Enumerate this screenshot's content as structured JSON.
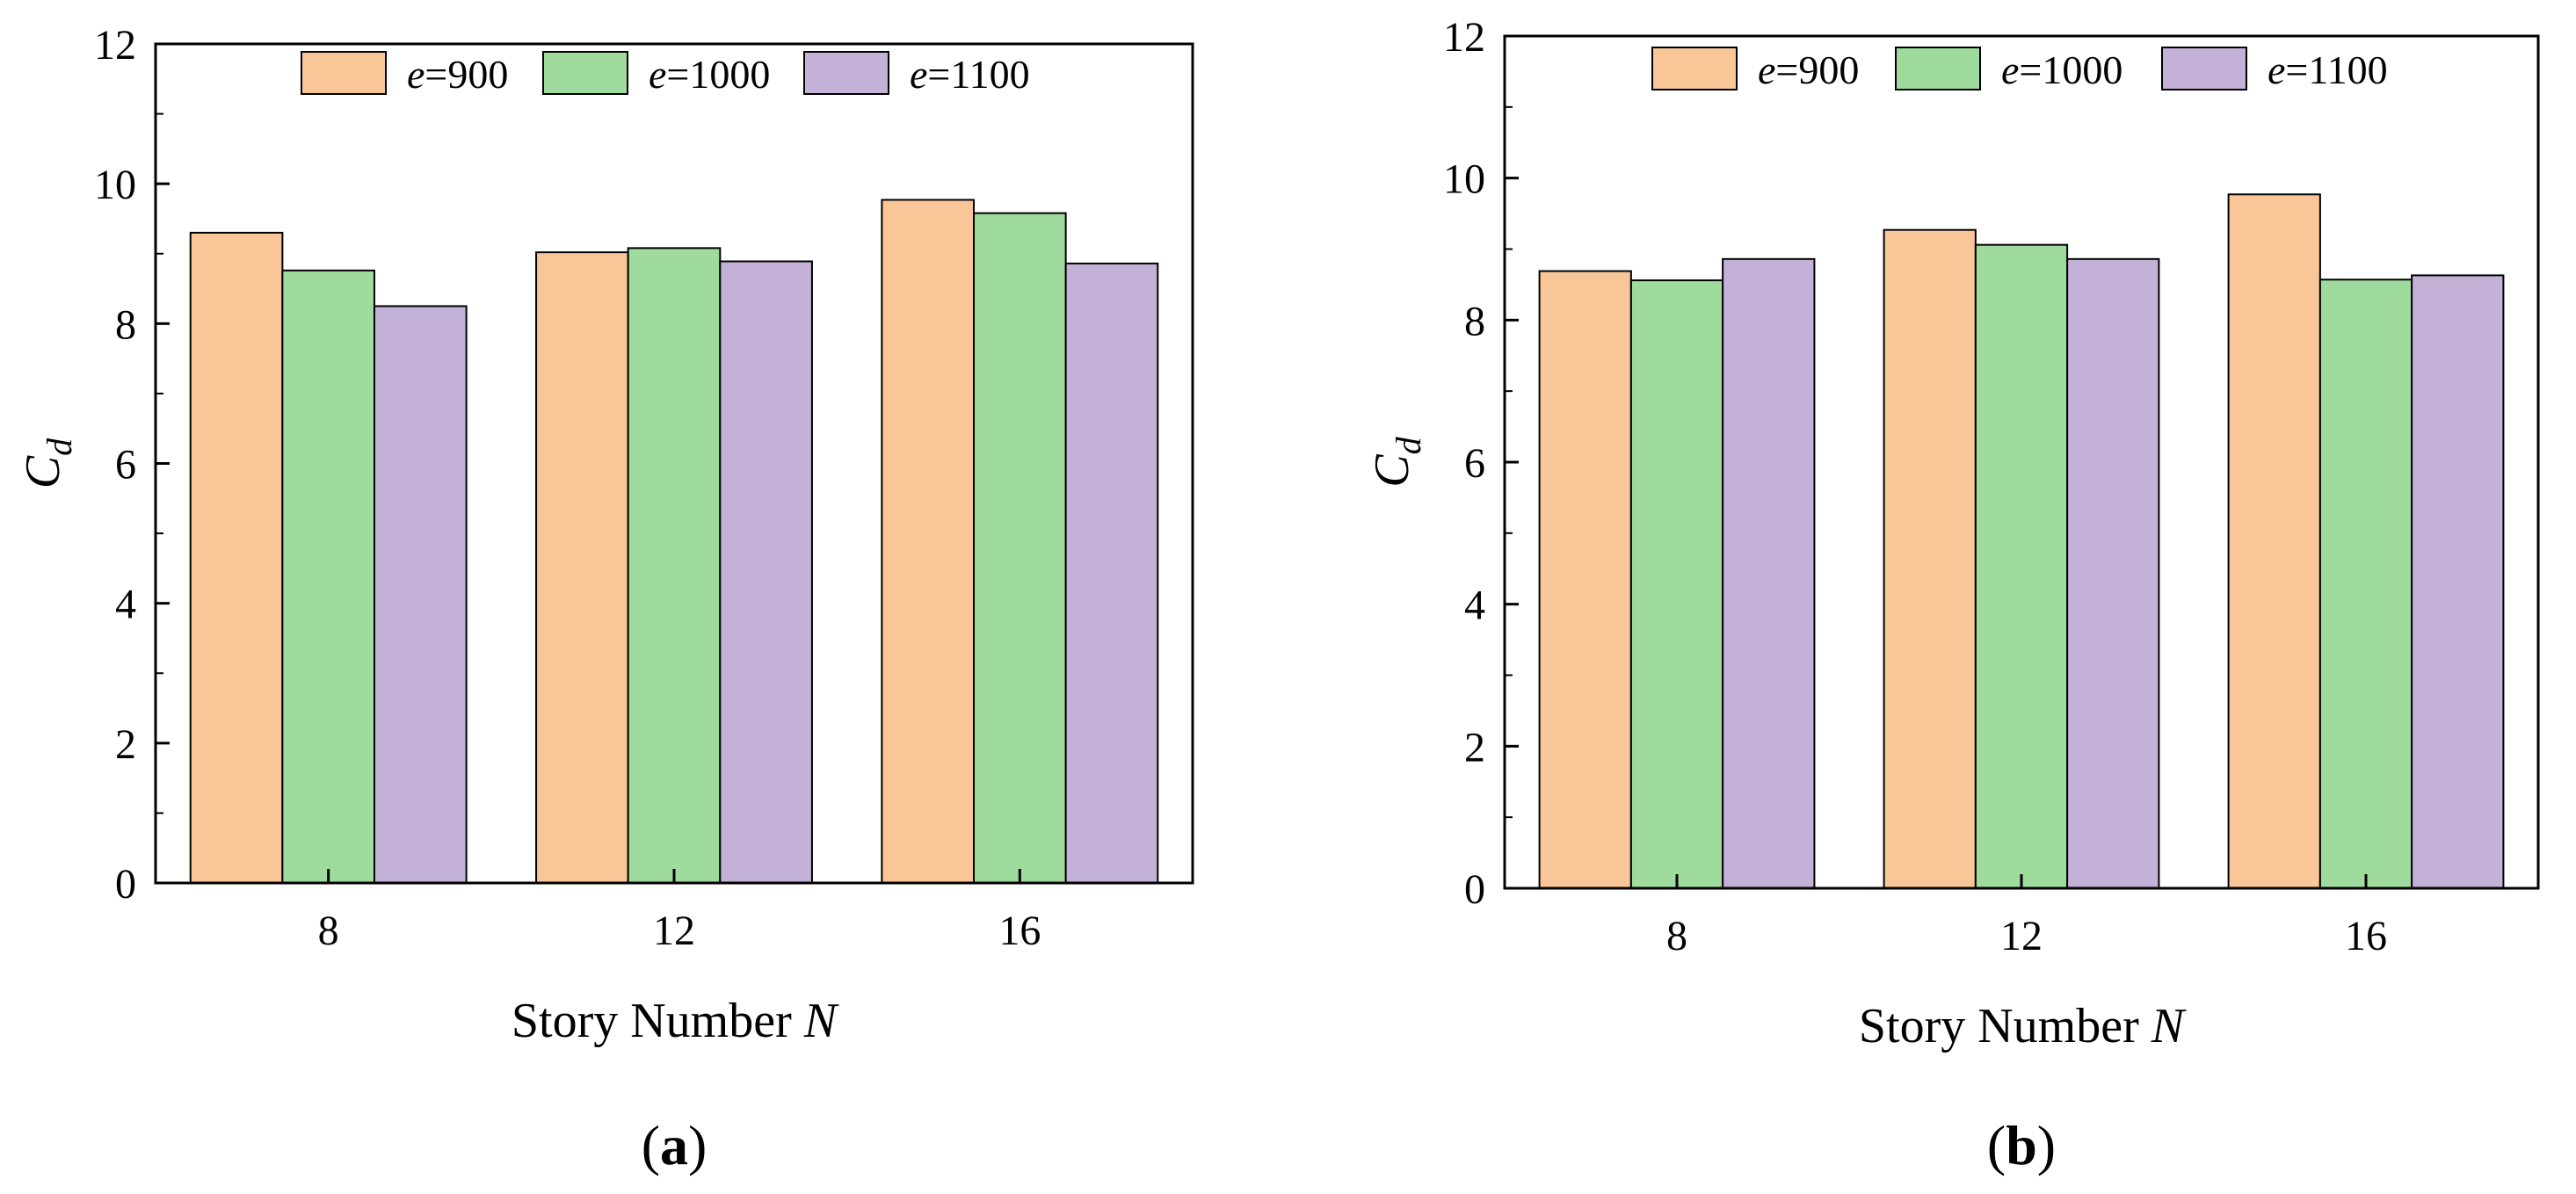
{
  "chart_data": [
    {
      "type": "bar",
      "panel_label": "a",
      "title": "",
      "xlabel": "Story Number",
      "xlabel_symbol": "N",
      "ylabel": "C",
      "ylabel_subscript": "d",
      "categories": [
        "8",
        "12",
        "16"
      ],
      "ylim": [
        0,
        12
      ],
      "yticks": [
        "0",
        "2",
        "4",
        "6",
        "8",
        "10",
        "12"
      ],
      "legend_position": "top-center",
      "series": [
        {
          "name": "e=900",
          "symbol": "e",
          "suffix": "=900",
          "color": "#f9c697",
          "values": [
            9.3,
            9.02,
            9.77
          ]
        },
        {
          "name": "e=1000",
          "symbol": "e",
          "suffix": "=1000",
          "color": "#9edb9c",
          "values": [
            8.76,
            9.08,
            9.58
          ]
        },
        {
          "name": "e=1100",
          "symbol": "e",
          "suffix": "=1100",
          "color": "#c3b1d8",
          "values": [
            8.25,
            8.89,
            8.86
          ]
        }
      ]
    },
    {
      "type": "bar",
      "panel_label": "b",
      "title": "",
      "xlabel": "Story Number",
      "xlabel_symbol": "N",
      "ylabel": "C",
      "ylabel_subscript": "d",
      "categories": [
        "8",
        "12",
        "16"
      ],
      "ylim": [
        0,
        12
      ],
      "yticks": [
        "0",
        "2",
        "4",
        "6",
        "8",
        "10",
        "12"
      ],
      "legend_position": "top-center",
      "series": [
        {
          "name": "e=900",
          "symbol": "e",
          "suffix": "=900",
          "color": "#f9c697",
          "values": [
            8.69,
            9.27,
            9.77
          ]
        },
        {
          "name": "e=1000",
          "symbol": "e",
          "suffix": "=1000",
          "color": "#9edb9c",
          "values": [
            8.56,
            9.06,
            8.57
          ]
        },
        {
          "name": "e=1100",
          "symbol": "e",
          "suffix": "=1100",
          "color": "#c3b1d8",
          "values": [
            8.86,
            8.86,
            8.63
          ]
        }
      ]
    }
  ]
}
